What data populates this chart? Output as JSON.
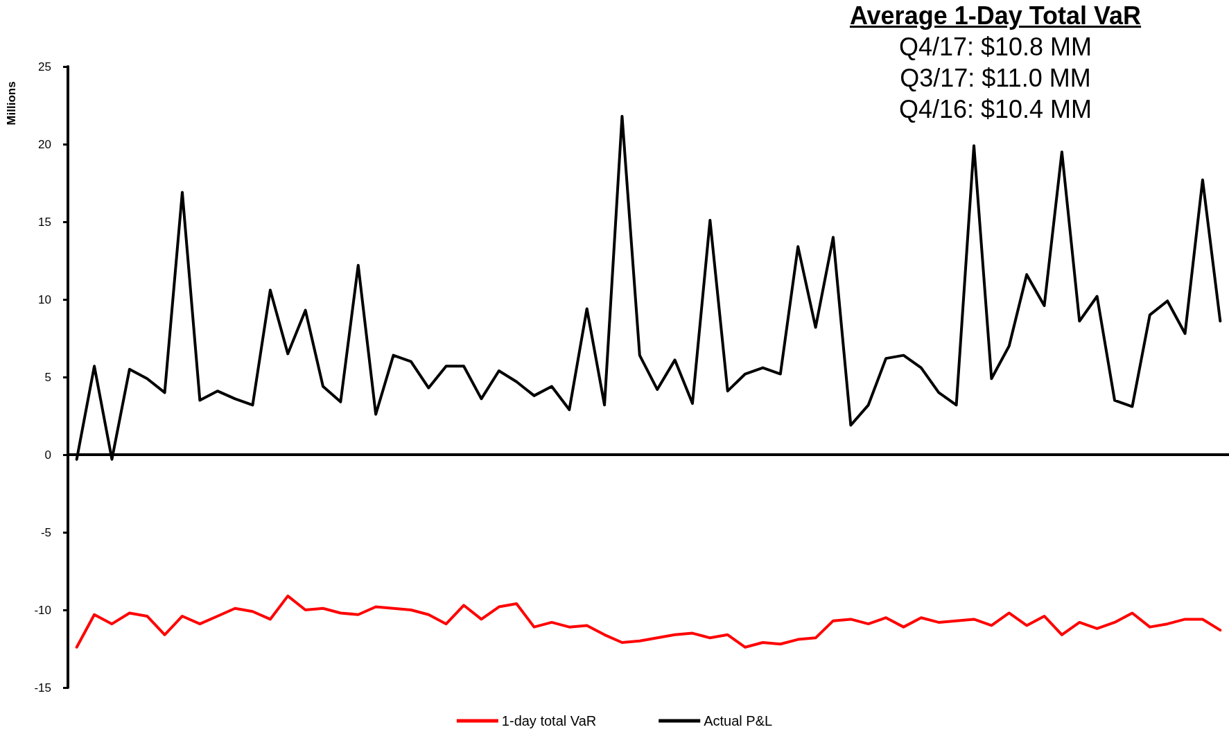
{
  "chart_data": {
    "type": "line",
    "ylabel": "Millions",
    "annotations": [
      "Average 1-Day Total VaR",
      "Q4/17: $10.8 MM",
      "Q3/17: $11.0 MM",
      "Q4/16: $10.4 MM"
    ],
    "categories": [
      null,
      null,
      null,
      null,
      null,
      null,
      null,
      null,
      null,
      null,
      null,
      null,
      null,
      null,
      null,
      null,
      null,
      null,
      null,
      null,
      null,
      null,
      null,
      null,
      null,
      null,
      null,
      null,
      null,
      null,
      null,
      null,
      null,
      null,
      null,
      null,
      null,
      null,
      null,
      null,
      null,
      null,
      null,
      null,
      null,
      null,
      null,
      null,
      null,
      null,
      null,
      null,
      null,
      null,
      null,
      null,
      null,
      null,
      null,
      null,
      null,
      null,
      null,
      null,
      null,
      null
    ],
    "series": [
      {
        "name": "1-day total VaR",
        "color": "#ff0000",
        "values": [
          -12.4,
          -10.3,
          -10.9,
          -10.2,
          -10.4,
          -11.6,
          -10.4,
          -10.9,
          -10.4,
          -9.9,
          -10.1,
          -10.6,
          -9.1,
          -10.0,
          -9.9,
          -10.2,
          -10.3,
          -9.8,
          -9.9,
          -10.0,
          -10.3,
          -10.9,
          -9.7,
          -10.6,
          -9.8,
          -9.6,
          -11.1,
          -10.8,
          -11.1,
          -11.0,
          -11.6,
          -12.1,
          -12.0,
          -11.8,
          -11.6,
          -11.5,
          -11.8,
          -11.6,
          -12.4,
          -12.1,
          -12.2,
          -11.9,
          -11.8,
          -10.7,
          -10.6,
          -10.9,
          -10.5,
          -11.1,
          -10.5,
          -10.8,
          -10.7,
          -10.6,
          -11.0,
          -10.2,
          -11.0,
          -10.4,
          -11.6,
          -10.8,
          -11.2,
          -10.8,
          -10.2,
          -11.1,
          -10.9,
          -10.6,
          -10.6,
          -11.3
        ]
      },
      {
        "name": "Actual P&L",
        "color": "#000000",
        "values": [
          -0.3,
          5.7,
          -0.3,
          5.5,
          4.9,
          4.0,
          16.9,
          3.5,
          4.1,
          3.6,
          3.2,
          10.6,
          6.5,
          9.3,
          4.4,
          3.4,
          12.2,
          2.6,
          6.4,
          6.0,
          4.3,
          5.7,
          5.7,
          3.6,
          5.4,
          4.7,
          3.8,
          4.4,
          2.9,
          9.4,
          3.2,
          21.8,
          6.4,
          4.2,
          6.1,
          3.3,
          15.1,
          4.1,
          5.2,
          5.6,
          5.2,
          13.4,
          8.2,
          14.0,
          1.9,
          3.2,
          6.2,
          6.4,
          5.6,
          4.0,
          3.2,
          19.9,
          4.9,
          7.0,
          11.6,
          9.6,
          19.5,
          8.6,
          10.2,
          3.5,
          3.1,
          9.0,
          9.9,
          7.8,
          17.7,
          8.6
        ]
      }
    ],
    "ylim": [
      -15,
      25
    ],
    "yticks": [
      -15,
      -10,
      -5,
      0,
      5,
      10,
      15,
      20,
      25
    ],
    "ref_lines": [
      {
        "axis": "y",
        "value": 0,
        "color": "#000000",
        "line_style": "solid"
      }
    ],
    "grid": false,
    "legend": "bottom",
    "marker": "none",
    "line_style": "solid"
  }
}
